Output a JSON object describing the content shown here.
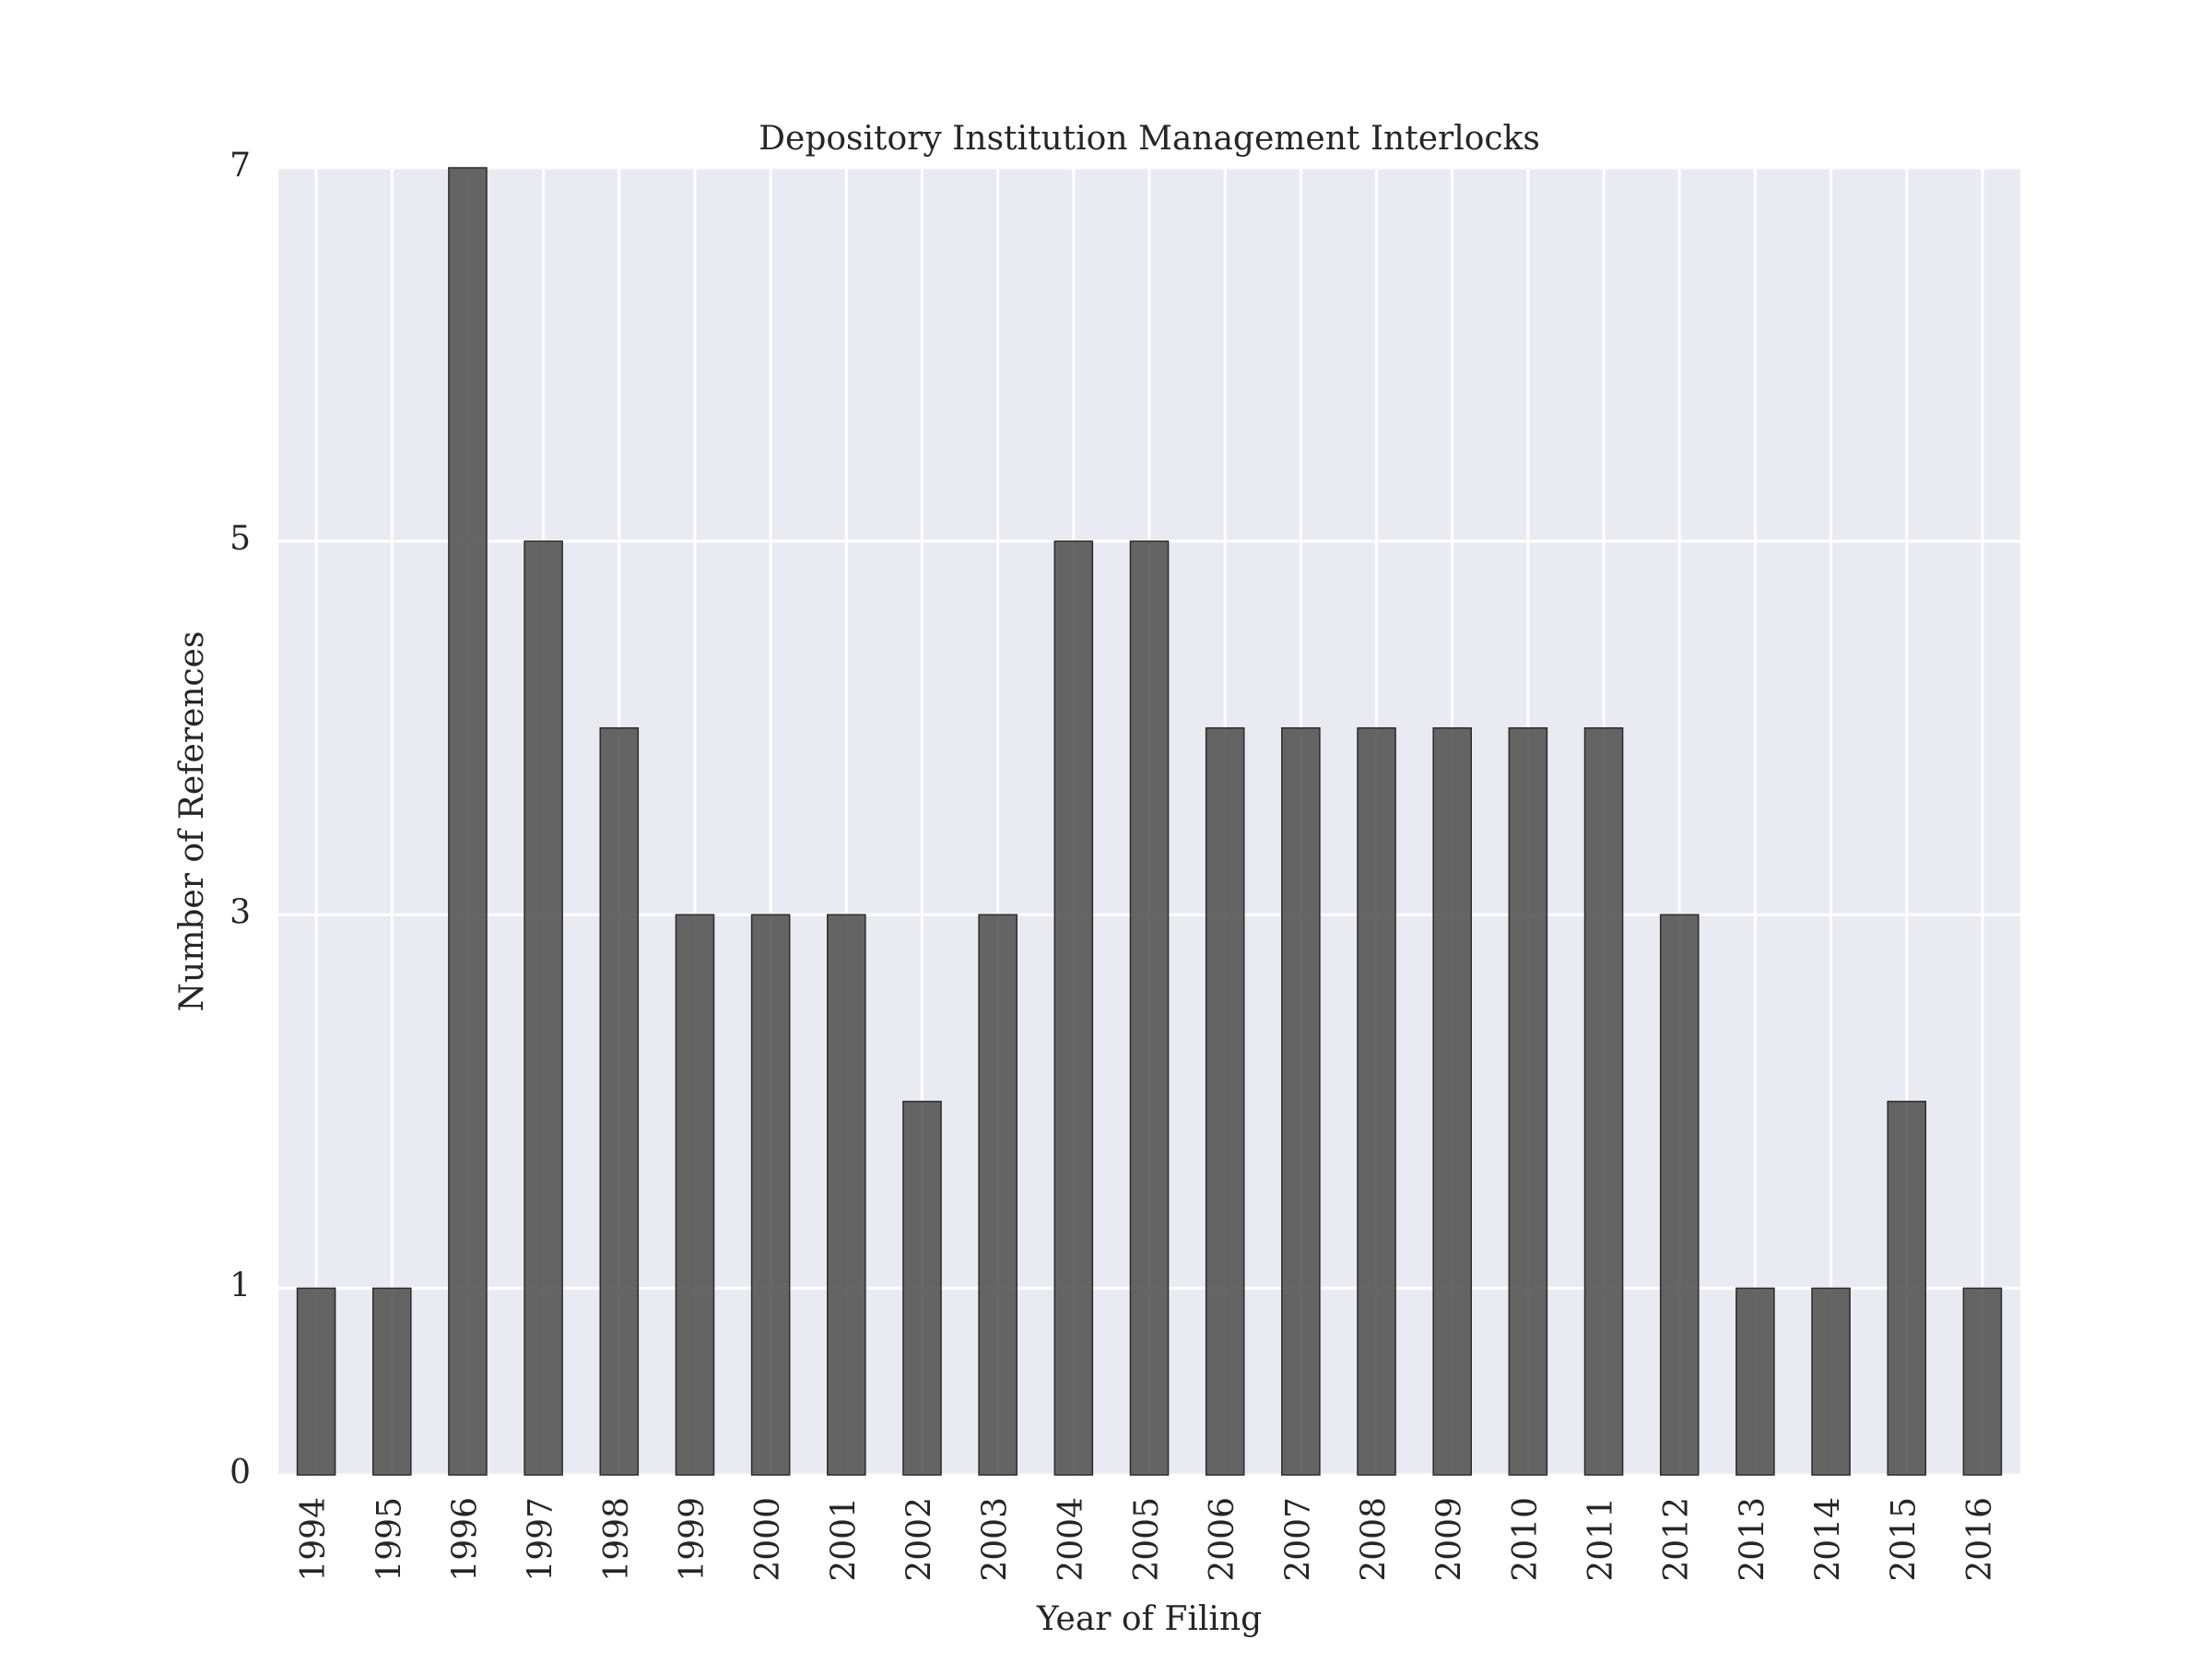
{
  "chart_data": {
    "type": "bar",
    "title": "Depository Institution Management Interlocks",
    "xlabel": "Year of Filing",
    "ylabel": "Number of References",
    "categories": [
      "1994",
      "1995",
      "1996",
      "1997",
      "1998",
      "1999",
      "2000",
      "2001",
      "2002",
      "2003",
      "2004",
      "2005",
      "2006",
      "2007",
      "2008",
      "2009",
      "2010",
      "2011",
      "2012",
      "2013",
      "2014",
      "2015",
      "2016"
    ],
    "values": [
      1,
      1,
      7,
      5,
      4,
      3,
      3,
      3,
      2,
      3,
      5,
      5,
      4,
      4,
      4,
      4,
      4,
      4,
      3,
      1,
      1,
      2,
      1
    ],
    "ylim": [
      0,
      7
    ],
    "yticks": [
      0,
      1,
      3,
      5,
      7
    ],
    "grid": true,
    "legend": "none",
    "colors": {
      "bar": "#555555",
      "bar_edge": "#2b2b2b",
      "plot_background": "#EAEAF2",
      "grid": "#ffffff",
      "text": "#262626"
    }
  }
}
